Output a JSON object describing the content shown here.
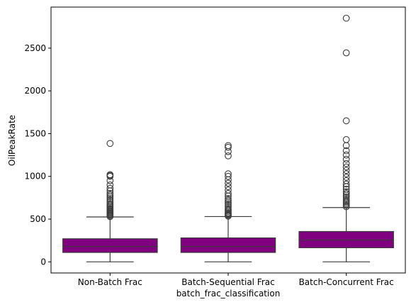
{
  "chart_data": {
    "type": "box",
    "xlabel": "batch_frac_classification",
    "ylabel": "OilPeakRate",
    "ylim": [
      -130,
      2980
    ],
    "yticks": [
      0,
      500,
      1000,
      1500,
      2000,
      2500
    ],
    "box_color": "#800080",
    "categories": [
      "Non-Batch Frac",
      "Batch-Sequential Frac",
      "Batch-Concurrent Frac"
    ],
    "boxes": [
      {
        "category": "Non-Batch Frac",
        "whisker_low": 0,
        "q1": 110,
        "median": 180,
        "q3": 270,
        "whisker_high": 525,
        "outliers": [
          530,
          540,
          550,
          560,
          570,
          580,
          590,
          600,
          610,
          620,
          635,
          650,
          665,
          680,
          700,
          720,
          740,
          760,
          780,
          800,
          830,
          860,
          900,
          950,
          1000,
          1010,
          1020,
          1385
        ]
      },
      {
        "category": "Batch-Sequential Frac",
        "whisker_low": 0,
        "q1": 110,
        "median": 180,
        "q3": 280,
        "whisker_high": 530,
        "outliers": [
          535,
          545,
          555,
          565,
          575,
          590,
          605,
          620,
          640,
          660,
          680,
          700,
          720,
          740,
          770,
          800,
          840,
          880,
          920,
          960,
          1000,
          1030,
          1240,
          1290,
          1340,
          1360
        ]
      },
      {
        "category": "Batch-Concurrent Frac",
        "whisker_low": 0,
        "q1": 165,
        "median": 255,
        "q3": 355,
        "whisker_high": 635,
        "outliers": [
          645,
          660,
          675,
          690,
          705,
          720,
          740,
          760,
          780,
          800,
          820,
          850,
          880,
          910,
          950,
          990,
          1030,
          1070,
          1110,
          1150,
          1200,
          1250,
          1300,
          1360,
          1430,
          1650,
          2445,
          2850
        ]
      }
    ]
  }
}
